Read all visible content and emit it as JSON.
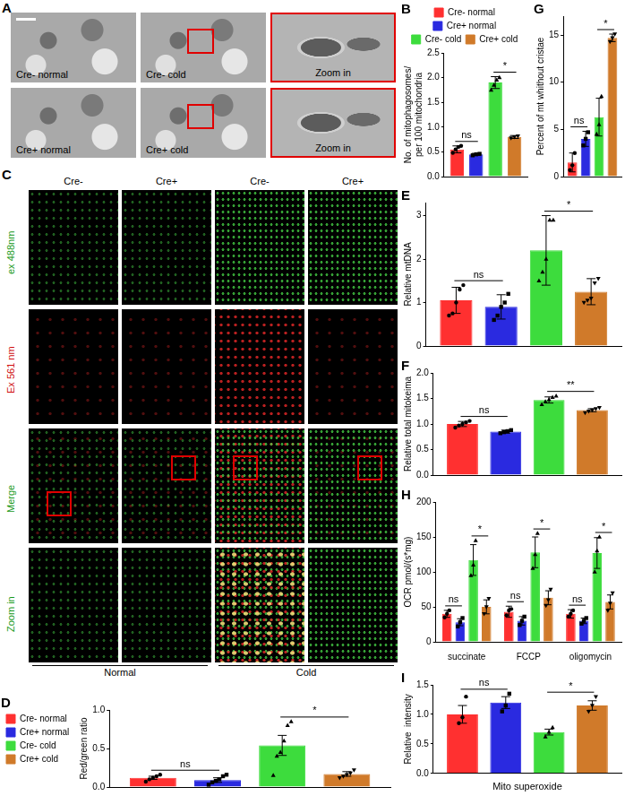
{
  "image_panels": {
    "A": {
      "panel": "A",
      "rows": [
        [
          "Cre- normal",
          "Cre- cold",
          "Zoom in"
        ],
        [
          "Cre+ normal",
          "Cre+ cold",
          "Zoom in"
        ]
      ]
    },
    "C": {
      "panel": "C",
      "columns": [
        "Cre-",
        "Cre+",
        "Cre-",
        "Cre+"
      ],
      "rows": [
        "ex 488nm",
        "Ex 561 nm",
        "Merge",
        "Zoom in"
      ],
      "groups": [
        "Normal",
        "Cold"
      ]
    }
  },
  "chart_data": [
    {
      "type": "bar",
      "panel": "B",
      "y_label": [
        "No. of mitophagosomes/",
        "per 100 mitochondria"
      ],
      "categories": [
        null
      ],
      "tick_labels": "y",
      "grid": false,
      "legend": "top",
      "ylim": [
        0,
        2.5
      ],
      "yticks": [
        {
          "value": 0,
          "label": "0.0"
        },
        {
          "value": 0.5,
          "label": "0.5"
        },
        {
          "value": 1,
          "label": "1.0"
        },
        {
          "value": 1.5,
          "label": "1.5"
        },
        {
          "value": 2,
          "label": "2.0"
        },
        {
          "value": 2.5,
          "label": "2.5"
        }
      ],
      "series": [
        {
          "name": "Cre- normal",
          "color": "#ff3030",
          "marker": "circle",
          "values": [
            0.55
          ],
          "errors": [
            0.07
          ],
          "points": [
            [
              0.48,
              0.55,
              0.6,
              0.62
            ]
          ]
        },
        {
          "name": "Cre+ normal",
          "color": "#2a2ae0",
          "marker": "square",
          "values": [
            0.45
          ],
          "errors": [
            0.02
          ],
          "points": [
            [
              0.43,
              0.45,
              0.46
            ]
          ]
        },
        {
          "name": "Cre- cold",
          "color": "#3ddc3d",
          "marker": "triangle",
          "values": [
            1.9
          ],
          "errors": [
            0.12
          ],
          "points": [
            [
              1.75,
              1.85,
              1.95,
              2.0
            ]
          ]
        },
        {
          "name": "Cre+ cold",
          "color": "#d07a2a",
          "marker": "triangle_down",
          "values": [
            0.8
          ],
          "errors": [
            0.03
          ],
          "points": [
            [
              0.78,
              0.8,
              0.82
            ]
          ]
        }
      ],
      "annotations": [
        {
          "text": "ns",
          "between": [
            "Cre- normal",
            "Cre+ normal"
          ]
        },
        {
          "text": "*",
          "between": [
            "Cre- cold",
            "Cre+ cold"
          ]
        }
      ]
    },
    {
      "type": "bar",
      "panel": "G",
      "y_label": "Percent of mt whithout cristae",
      "categories": [
        null
      ],
      "tick_labels": "y",
      "grid": false,
      "ylim": [
        0,
        17
      ],
      "yticks": [
        0,
        5,
        10,
        15
      ],
      "series": [
        {
          "name": "Cre- normal",
          "color": "#ff3030",
          "marker": "circle",
          "values": [
            1.5
          ],
          "errors": [
            1.0
          ],
          "points": [
            [
              0.7,
              1.2,
              2.5
            ]
          ]
        },
        {
          "name": "Cre+ normal",
          "color": "#2a2ae0",
          "marker": "square",
          "values": [
            4
          ],
          "errors": [
            0.8
          ],
          "points": [
            [
              3.3,
              4,
              4.7
            ]
          ]
        },
        {
          "name": "Cre- cold",
          "color": "#3ddc3d",
          "marker": "triangle",
          "values": [
            6.3
          ],
          "errors": [
            2.0
          ],
          "points": [
            [
              4.5,
              5.5,
              8.5
            ]
          ]
        },
        {
          "name": "Cre+ cold",
          "color": "#d07a2a",
          "marker": "triangle_down",
          "values": [
            14.7
          ],
          "errors": [
            0.4
          ],
          "points": [
            [
              14.3,
              14.7,
              15.1
            ]
          ]
        }
      ],
      "annotations": [
        {
          "text": "ns",
          "between": [
            "Cre- normal",
            "Cre+ normal"
          ]
        },
        {
          "text": "*",
          "between": [
            "Cre- cold",
            "Cre+ cold"
          ]
        }
      ]
    },
    {
      "type": "bar",
      "panel": "E",
      "y_label": "Relative mtDNA",
      "categories": [
        null
      ],
      "tick_labels": "y",
      "grid": false,
      "ylim": [
        0,
        3.3
      ],
      "yticks": [
        0,
        1,
        2,
        3
      ],
      "series": [
        {
          "name": "Cre- normal",
          "color": "#ff3030",
          "marker": "circle",
          "values": [
            1.05
          ],
          "errors": [
            0.3
          ],
          "points": [
            [
              0.7,
              0.75,
              1.0,
              1.3,
              1.4
            ]
          ]
        },
        {
          "name": "Cre+ normal",
          "color": "#2a2ae0",
          "marker": "square",
          "values": [
            0.9
          ],
          "errors": [
            0.28
          ],
          "points": [
            [
              0.6,
              0.7,
              0.9,
              1.0,
              1.2
            ]
          ]
        },
        {
          "name": "Cre- cold",
          "color": "#3ddc3d",
          "marker": "triangle",
          "values": [
            2.2
          ],
          "errors": [
            0.8
          ],
          "points": [
            [
              1.5,
              1.7,
              2.0,
              2.9,
              2.9
            ]
          ]
        },
        {
          "name": "Cre+ cold",
          "color": "#d07a2a",
          "marker": "triangle_down",
          "values": [
            1.25
          ],
          "errors": [
            0.3
          ],
          "points": [
            [
              1.0,
              1.05,
              1.1,
              1.45,
              1.55
            ]
          ]
        }
      ],
      "annotations": [
        {
          "text": "ns",
          "between": [
            "Cre- normal",
            "Cre+ normal"
          ]
        },
        {
          "text": "*",
          "between": [
            "Cre- cold",
            "Cre+ cold"
          ]
        }
      ]
    },
    {
      "type": "bar",
      "panel": "F",
      "y_label": "Relative total mitokeima",
      "categories": [
        null
      ],
      "tick_labels": "y",
      "grid": false,
      "ylim": [
        0,
        2
      ],
      "yticks": [
        {
          "value": 0,
          "label": "0.0"
        },
        {
          "value": 0.5,
          "label": "0.5"
        },
        {
          "value": 1,
          "label": "1.0"
        },
        {
          "value": 1.5,
          "label": "1.5"
        },
        {
          "value": 2,
          "label": "2.0"
        }
      ],
      "series": [
        {
          "name": "Cre- normal",
          "color": "#ff3030",
          "marker": "circle",
          "values": [
            1.0
          ],
          "errors": [
            0.05
          ],
          "points": [
            [
              0.93,
              0.97,
              1.0,
              1.03,
              1.06
            ]
          ]
        },
        {
          "name": "Cre+ normal",
          "color": "#2a2ae0",
          "marker": "square",
          "values": [
            0.85
          ],
          "errors": [
            0.03
          ],
          "points": [
            [
              0.82,
              0.84,
              0.86,
              0.88
            ]
          ]
        },
        {
          "name": "Cre- cold",
          "color": "#3ddc3d",
          "marker": "triangle",
          "values": [
            1.47
          ],
          "errors": [
            0.06
          ],
          "points": [
            [
              1.38,
              1.44,
              1.48,
              1.52,
              1.55
            ]
          ]
        },
        {
          "name": "Cre+ cold",
          "color": "#d07a2a",
          "marker": "triangle_down",
          "values": [
            1.27
          ],
          "errors": [
            0.03
          ],
          "points": [
            [
              1.22,
              1.25,
              1.27,
              1.3,
              1.32
            ]
          ]
        }
      ],
      "annotations": [
        {
          "text": "ns",
          "between": [
            "Cre- normal",
            "Cre+ normal"
          ]
        },
        {
          "text": "**",
          "between": [
            "Cre- cold",
            "Cre+ cold"
          ]
        }
      ]
    },
    {
      "type": "bar",
      "panel": "H",
      "y_label": "OCR pmol/(s*mg)",
      "categories": [
        "succinate",
        "FCCP",
        "oligomycin"
      ],
      "grid": false,
      "ylim": [
        0,
        200
      ],
      "yticks": [
        0,
        50,
        100,
        150,
        200
      ],
      "series": [
        {
          "name": "Cre- normal",
          "color": "#ff3030",
          "marker": "circle",
          "values": [
            40,
            43,
            40
          ],
          "errors": [
            5,
            8,
            6
          ],
          "points": [
            [
              35,
              40,
              45
            ],
            [
              38,
              45,
              47
            ],
            [
              36,
              40,
              45
            ]
          ]
        },
        {
          "name": "Cre+ normal",
          "color": "#2a2ae0",
          "marker": "square",
          "values": [
            28,
            30,
            30
          ],
          "errors": [
            5,
            6,
            4
          ],
          "points": [
            [
              22,
              28,
              34
            ],
            [
              24,
              30,
              36
            ],
            [
              26,
              30,
              34
            ]
          ]
        },
        {
          "name": "Cre- cold",
          "color": "#3ddc3d",
          "marker": "triangle",
          "values": [
            117,
            128,
            127
          ],
          "errors": [
            22,
            22,
            22
          ],
          "points": [
            [
              95,
              110,
              145
            ],
            [
              105,
              125,
              155
            ],
            [
              100,
              130,
              150
            ]
          ]
        },
        {
          "name": "Cre+ cold",
          "color": "#d07a2a",
          "marker": "triangle_down",
          "values": [
            50,
            63,
            57
          ],
          "errors": [
            10,
            10,
            10
          ],
          "points": [
            [
              40,
              50,
              62
            ],
            [
              52,
              60,
              75
            ],
            [
              45,
              55,
              70
            ]
          ]
        }
      ],
      "annotations": [
        {
          "text": "ns",
          "category": "succinate",
          "between": [
            "Cre- normal",
            "Cre+ normal"
          ]
        },
        {
          "text": "*",
          "category": "succinate",
          "between": [
            "Cre- cold",
            "Cre+ cold"
          ]
        },
        {
          "text": "ns",
          "category": "FCCP",
          "between": [
            "Cre- normal",
            "Cre+ normal"
          ]
        },
        {
          "text": "*",
          "category": "FCCP",
          "between": [
            "Cre- cold",
            "Cre+ cold"
          ]
        },
        {
          "text": "ns",
          "category": "oligomycin",
          "between": [
            "Cre- normal",
            "Cre+ normal"
          ]
        },
        {
          "text": "*",
          "category": "oligomycin",
          "between": [
            "Cre- cold",
            "Cre+ cold"
          ]
        }
      ]
    },
    {
      "type": "bar",
      "panel": "I",
      "y_label": "Relative  intensity",
      "x_label": "Mito superoxide",
      "categories": [
        null
      ],
      "tick_labels": "y",
      "grid": false,
      "ylim": [
        0,
        1.5
      ],
      "yticks": [
        {
          "value": 0,
          "label": "0.0"
        },
        {
          "value": 0.5,
          "label": "0.5"
        },
        {
          "value": 1,
          "label": "1.0"
        },
        {
          "value": 1.5,
          "label": "1.5"
        }
      ],
      "series": [
        {
          "name": "Cre- normal",
          "color": "#ff3030",
          "marker": "circle",
          "values": [
            1.0
          ],
          "errors": [
            0.15
          ],
          "points": [
            [
              0.85,
              0.95,
              1.3
            ]
          ]
        },
        {
          "name": "Cre+ normal",
          "color": "#2a2ae0",
          "marker": "square",
          "values": [
            1.2
          ],
          "errors": [
            0.1
          ],
          "points": [
            [
              1.05,
              1.15,
              1.35
            ]
          ]
        },
        {
          "name": "Cre- cold",
          "color": "#3ddc3d",
          "marker": "triangle",
          "values": [
            0.7
          ],
          "errors": [
            0.05
          ],
          "points": [
            [
              0.62,
              0.7,
              0.78
            ]
          ]
        },
        {
          "name": "Cre+ cold",
          "color": "#d07a2a",
          "marker": "triangle_down",
          "values": [
            1.15
          ],
          "errors": [
            0.08
          ],
          "points": [
            [
              1.05,
              1.15,
              1.3
            ]
          ]
        }
      ],
      "annotations": [
        {
          "text": "ns",
          "between": [
            "Cre- normal",
            "Cre+ normal"
          ]
        },
        {
          "text": "*",
          "between": [
            "Cre- cold",
            "Cre+ cold"
          ]
        }
      ]
    },
    {
      "type": "bar",
      "panel": "D",
      "y_label": "Red/green ratio",
      "categories": [
        null
      ],
      "tick_labels": "y",
      "grid": false,
      "legend": "left",
      "ylim": [
        0,
        1
      ],
      "yticks": [
        {
          "value": 0,
          "label": "0.0"
        },
        {
          "value": 0.5,
          "label": "0.5"
        },
        {
          "value": 1,
          "label": "1.0"
        }
      ],
      "series": [
        {
          "name": "Cre- normal",
          "color": "#ff3030",
          "marker": "circle",
          "values": [
            0.12
          ],
          "errors": [
            0.02
          ],
          "points": [
            [
              0.07,
              0.1,
              0.12,
              0.14,
              0.16
            ]
          ]
        },
        {
          "name": "Cre+ normal",
          "color": "#2a2ae0",
          "marker": "square",
          "values": [
            0.09
          ],
          "errors": [
            0.03
          ],
          "points": [
            [
              0.03,
              0.06,
              0.08,
              0.1,
              0.14,
              0.16
            ]
          ]
        },
        {
          "name": "Cre- cold",
          "color": "#3ddc3d",
          "marker": "triangle",
          "values": [
            0.54
          ],
          "errors": [
            0.13
          ],
          "points": [
            [
              0.15,
              0.4,
              0.45,
              0.6,
              0.8,
              0.85
            ]
          ]
        },
        {
          "name": "Cre+ cold",
          "color": "#d07a2a",
          "marker": "triangle_down",
          "values": [
            0.17
          ],
          "errors": [
            0.03
          ],
          "points": [
            [
              0.12,
              0.14,
              0.16,
              0.18,
              0.22
            ]
          ]
        }
      ],
      "annotations": [
        {
          "text": "ns",
          "between": [
            "Cre- normal",
            "Cre+ normal"
          ]
        },
        {
          "text": "*",
          "between": [
            "Cre- cold",
            "Cre+ cold"
          ]
        }
      ]
    }
  ]
}
